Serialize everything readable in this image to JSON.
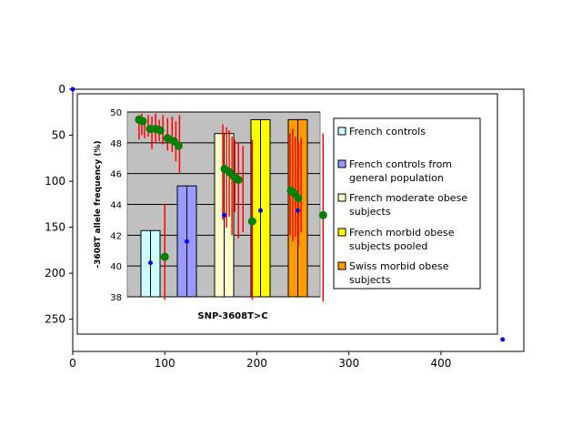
{
  "chart_data": [
    {
      "type": "scatter",
      "role": "outer-axes",
      "xlim": [
        0,
        490
      ],
      "ylim": [
        0,
        285
      ],
      "y_inverted": true,
      "x_ticks": [
        "0",
        "100",
        "200",
        "300",
        "400"
      ],
      "y_ticks": [
        "0",
        "50",
        "100",
        "150",
        "200",
        "250"
      ],
      "points": [
        {
          "x": 0,
          "y": 0
        },
        {
          "x": 467,
          "y": 272
        }
      ],
      "colors": {
        "points": "#0000ff",
        "frame": "#000000"
      }
    },
    {
      "type": "bar",
      "role": "embedded-image-chart",
      "xlabel": "SNP-3608T>C",
      "ylabel": "-3608T allele frequency (%)",
      "ylim": [
        38,
        50
      ],
      "y_ticks": [
        "38",
        "40",
        "42",
        "44",
        "46",
        "48",
        "50"
      ],
      "grid": true,
      "legend_position": "right",
      "series": [
        {
          "name": "French controls",
          "value": 42.3,
          "color": "#ccffff",
          "dot_y": 40.2
        },
        {
          "name": "French controls from general population",
          "value": 45.2,
          "color": "#9999ff",
          "dot_y": 41.6
        },
        {
          "name": "French moderate obese subjects",
          "value": 48.6,
          "color": "#ffffcc",
          "dot_y": 43.3
        },
        {
          "name": "French morbid obese subjects pooled",
          "value": 49.5,
          "color": "#ffff00",
          "dot_y": 43.6
        },
        {
          "name": "Swiss morbid obese subjects",
          "value": 49.5,
          "color": "#ff9900",
          "dot_y": 43.6
        }
      ],
      "green_points": [
        {
          "x": 72,
          "y": 49.5
        },
        {
          "x": 76,
          "y": 49.4
        },
        {
          "x": 84,
          "y": 48.9
        },
        {
          "x": 90,
          "y": 48.9
        },
        {
          "x": 95,
          "y": 48.8
        },
        {
          "x": 103,
          "y": 48.3
        },
        {
          "x": 110,
          "y": 48.1
        },
        {
          "x": 115,
          "y": 47.8
        },
        {
          "x": 100,
          "y": 40.6
        },
        {
          "x": 165,
          "y": 46.3
        },
        {
          "x": 170,
          "y": 46.1
        },
        {
          "x": 175,
          "y": 45.8
        },
        {
          "x": 180,
          "y": 45.6
        },
        {
          "x": 195,
          "y": 42.9
        },
        {
          "x": 237,
          "y": 44.9
        },
        {
          "x": 241,
          "y": 44.7
        },
        {
          "x": 245,
          "y": 44.4
        },
        {
          "x": 272,
          "y": 43.3
        }
      ],
      "red_vlines": [
        {
          "x": 72,
          "y0": 49.8,
          "y1": 48.2
        },
        {
          "x": 75,
          "y0": 49.9,
          "y1": 48.5
        },
        {
          "x": 78,
          "y0": 49.6,
          "y1": 48.3
        },
        {
          "x": 82,
          "y0": 49.8,
          "y1": 48.4
        },
        {
          "x": 86,
          "y0": 49.7,
          "y1": 47.6
        },
        {
          "x": 90,
          "y0": 49.9,
          "y1": 48.0
        },
        {
          "x": 94,
          "y0": 49.5,
          "y1": 48.1
        },
        {
          "x": 98,
          "y0": 49.8,
          "y1": 47.9
        },
        {
          "x": 103,
          "y0": 49.6,
          "y1": 47.5
        },
        {
          "x": 108,
          "y0": 49.7,
          "y1": 47.4
        },
        {
          "x": 112,
          "y0": 49.4,
          "y1": 46.8
        },
        {
          "x": 116,
          "y0": 49.8,
          "y1": 46.0
        },
        {
          "x": 100,
          "y0": 44.0,
          "y1": 37.8
        },
        {
          "x": 163,
          "y0": 49.2,
          "y1": 43.0
        },
        {
          "x": 167,
          "y0": 49.0,
          "y1": 42.5
        },
        {
          "x": 170,
          "y0": 48.8,
          "y1": 43.2
        },
        {
          "x": 173,
          "y0": 48.4,
          "y1": 42.0
        },
        {
          "x": 176,
          "y0": 48.2,
          "y1": 43.5
        },
        {
          "x": 180,
          "y0": 48.0,
          "y1": 41.8
        },
        {
          "x": 185,
          "y0": 47.8,
          "y1": 42.2
        },
        {
          "x": 195,
          "y0": 48.2,
          "y1": 37.8
        },
        {
          "x": 236,
          "y0": 48.6,
          "y1": 42.0
        },
        {
          "x": 239,
          "y0": 48.9,
          "y1": 41.6
        },
        {
          "x": 242,
          "y0": 48.4,
          "y1": 41.9
        },
        {
          "x": 245,
          "y0": 48.0,
          "y1": 41.3
        },
        {
          "x": 248,
          "y0": 48.3,
          "y1": 42.2
        },
        {
          "x": 272,
          "y0": 48.6,
          "y1": 37.7
        }
      ],
      "colors": {
        "plot_bg": "#c0c0c0",
        "dots": "#0000ff",
        "green": "#008000",
        "red": "#ff0000"
      }
    }
  ]
}
